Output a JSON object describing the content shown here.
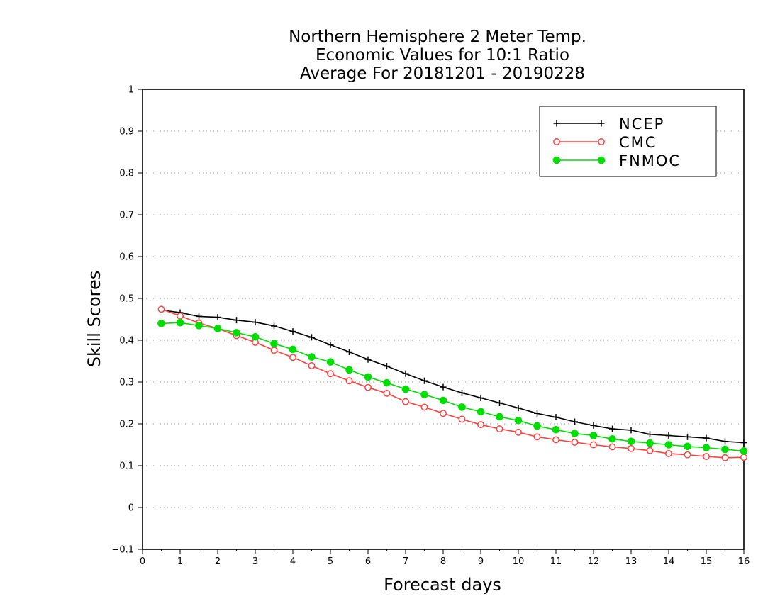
{
  "chart_data": {
    "type": "line",
    "title_lines": [
      "Northern Hemisphere 2 Meter Temp.",
      "Economic Values for 10:1 Ratio",
      "Average For 20181201 - 20190228"
    ],
    "xlabel": "Forecast days",
    "ylabel": "Skill Scores",
    "xlim": [
      0,
      16
    ],
    "ylim": [
      -0.1,
      1
    ],
    "x_ticks": [
      0,
      1,
      2,
      3,
      4,
      5,
      6,
      7,
      8,
      9,
      10,
      11,
      12,
      13,
      14,
      15,
      16
    ],
    "x_tick_labels": [
      "0",
      "1",
      "2",
      "3",
      "4",
      "5",
      "6",
      "7",
      "8",
      "9",
      "10",
      "11",
      "12",
      "13",
      "14",
      "15",
      "16"
    ],
    "y_ticks": [
      -0.1,
      0,
      0.1,
      0.2,
      0.3,
      0.4,
      0.5,
      0.6,
      0.7,
      0.8,
      0.9,
      1
    ],
    "y_tick_labels": [
      "−0.1",
      "0",
      "0.1",
      "0.2",
      "0.3",
      "0.4",
      "0.5",
      "0.6",
      "0.7",
      "0.8",
      "0.9",
      "1"
    ],
    "grid": "horizontal-dotted",
    "legend_position": "top-right",
    "x": [
      0.5,
      1,
      1.5,
      2,
      2.5,
      3,
      3.5,
      4,
      4.5,
      5,
      5.5,
      6,
      6.5,
      7,
      7.5,
      8,
      8.5,
      9,
      9.5,
      10,
      10.5,
      11,
      11.5,
      12,
      12.5,
      13,
      13.5,
      14,
      14.5,
      15,
      15.5,
      16
    ],
    "series": [
      {
        "name": "NCEP",
        "color": "#000000",
        "marker": "plus",
        "values": [
          0.472,
          0.466,
          0.457,
          0.455,
          0.448,
          0.443,
          0.434,
          0.421,
          0.407,
          0.389,
          0.372,
          0.354,
          0.338,
          0.32,
          0.303,
          0.288,
          0.274,
          0.262,
          0.25,
          0.238,
          0.225,
          0.216,
          0.205,
          0.196,
          0.188,
          0.185,
          0.175,
          0.172,
          0.169,
          0.166,
          0.158,
          0.155
        ]
      },
      {
        "name": "CMC",
        "color": "#ff4040",
        "marker": "open-circle",
        "values": [
          0.474,
          0.458,
          0.441,
          0.428,
          0.411,
          0.395,
          0.376,
          0.359,
          0.339,
          0.32,
          0.303,
          0.287,
          0.273,
          0.253,
          0.24,
          0.225,
          0.211,
          0.198,
          0.188,
          0.18,
          0.169,
          0.162,
          0.156,
          0.15,
          0.145,
          0.141,
          0.136,
          0.129,
          0.126,
          0.122,
          0.119,
          0.12
        ]
      },
      {
        "name": "FNMOC",
        "color": "#00dd00",
        "marker": "filled-circle",
        "values": [
          0.44,
          0.442,
          0.435,
          0.428,
          0.418,
          0.408,
          0.392,
          0.378,
          0.36,
          0.348,
          0.329,
          0.312,
          0.298,
          0.283,
          0.27,
          0.256,
          0.24,
          0.229,
          0.217,
          0.208,
          0.195,
          0.186,
          0.177,
          0.172,
          0.164,
          0.158,
          0.154,
          0.15,
          0.146,
          0.143,
          0.139,
          0.135
        ]
      }
    ]
  }
}
